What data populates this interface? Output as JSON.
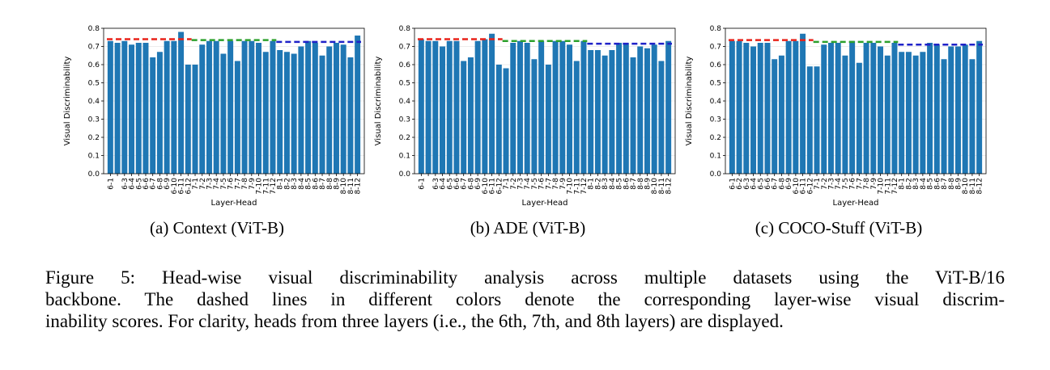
{
  "chart_data": [
    {
      "type": "bar",
      "ylabel": "Visual Discriminability",
      "xlabel": "Layer-Head",
      "ylim": [
        0,
        0.8
      ],
      "yticks": [
        "0.0",
        "0.1",
        "0.2",
        "0.3",
        "0.4",
        "0.5",
        "0.6",
        "0.7",
        "0.8"
      ],
      "grid": true,
      "categories": [
        "6-1",
        "6-2",
        "6-3",
        "6-4",
        "6-5",
        "6-6",
        "6-7",
        "6-8",
        "6-9",
        "6-10",
        "6-11",
        "6-12",
        "7-1",
        "7-2",
        "7-3",
        "7-4",
        "7-5",
        "7-6",
        "7-7",
        "7-8",
        "7-9",
        "7-10",
        "7-11",
        "7-12",
        "8-1",
        "8-2",
        "8-3",
        "8-4",
        "8-5",
        "8-6",
        "8-7",
        "8-8",
        "8-9",
        "8-10",
        "8-11",
        "8-12"
      ],
      "visible_tick_labels": [
        "6-1",
        "6-3",
        "6-4",
        "6-5",
        "6-6",
        "6-7",
        "6-8",
        "6-9",
        "6-10",
        "6-11",
        "6-12",
        "7-1",
        "7-2",
        "7-3",
        "7-4",
        "7-5",
        "7-6",
        "7-7",
        "7-8",
        "7-9",
        "7-10",
        "7-11",
        "7-12",
        "8-1",
        "8-2",
        "8-3",
        "8-4",
        "8-5",
        "8-6",
        "8-7",
        "8-8",
        "8-9",
        "8-10",
        "8-11",
        "8-12"
      ],
      "values": [
        0.73,
        0.72,
        0.73,
        0.71,
        0.72,
        0.72,
        0.64,
        0.67,
        0.73,
        0.73,
        0.78,
        0.6,
        0.6,
        0.71,
        0.73,
        0.73,
        0.66,
        0.73,
        0.62,
        0.73,
        0.73,
        0.72,
        0.67,
        0.73,
        0.68,
        0.67,
        0.66,
        0.7,
        0.73,
        0.72,
        0.65,
        0.7,
        0.72,
        0.71,
        0.64,
        0.76
      ],
      "layer_means": [
        {
          "start": 0,
          "end": 11,
          "value": 0.74,
          "color": "#e8231a"
        },
        {
          "start": 12,
          "end": 23,
          "value": 0.735,
          "color": "#2ca02c"
        },
        {
          "start": 24,
          "end": 35,
          "value": 0.725,
          "color": "#1f22c8"
        }
      ],
      "bar_color": "#1f77b4"
    },
    {
      "type": "bar",
      "ylabel": "Visual Discriminability",
      "xlabel": "Layer-Head",
      "ylim": [
        0,
        0.8
      ],
      "yticks": [
        "0.0",
        "0.1",
        "0.2",
        "0.3",
        "0.4",
        "0.5",
        "0.6",
        "0.7",
        "0.8"
      ],
      "grid": true,
      "categories": [
        "6-1",
        "6-2",
        "6-3",
        "6-4",
        "6-5",
        "6-6",
        "6-7",
        "6-8",
        "6-9",
        "6-10",
        "6-11",
        "6-12",
        "7-1",
        "7-2",
        "7-3",
        "7-4",
        "7-5",
        "7-6",
        "7-7",
        "7-8",
        "7-9",
        "7-10",
        "7-11",
        "7-12",
        "8-1",
        "8-2",
        "8-3",
        "8-4",
        "8-5",
        "8-6",
        "8-7",
        "8-8",
        "8-9",
        "8-10",
        "8-11",
        "8-12"
      ],
      "visible_tick_labels": [
        "6-1",
        "6-3",
        "6-4",
        "6-5",
        "6-6",
        "6-7",
        "6-8",
        "6-9",
        "6-10",
        "6-11",
        "6-12",
        "7-1",
        "7-2",
        "7-3",
        "7-4",
        "7-5",
        "7-6",
        "7-7",
        "7-8",
        "7-9",
        "7-10",
        "7-11",
        "7-12",
        "8-1",
        "8-2",
        "8-3",
        "8-4",
        "8-5",
        "8-6",
        "8-7",
        "8-8",
        "8-9",
        "8-10",
        "8-11",
        "8-12"
      ],
      "values": [
        0.74,
        0.73,
        0.73,
        0.7,
        0.73,
        0.73,
        0.62,
        0.64,
        0.73,
        0.74,
        0.77,
        0.6,
        0.58,
        0.72,
        0.73,
        0.72,
        0.63,
        0.73,
        0.6,
        0.73,
        0.73,
        0.71,
        0.62,
        0.73,
        0.68,
        0.68,
        0.65,
        0.68,
        0.72,
        0.72,
        0.64,
        0.7,
        0.69,
        0.71,
        0.62,
        0.73
      ],
      "layer_means": [
        {
          "start": 0,
          "end": 11,
          "value": 0.74,
          "color": "#e8231a"
        },
        {
          "start": 12,
          "end": 23,
          "value": 0.73,
          "color": "#2ca02c"
        },
        {
          "start": 24,
          "end": 35,
          "value": 0.715,
          "color": "#1f22c8"
        }
      ],
      "bar_color": "#1f77b4"
    },
    {
      "type": "bar",
      "ylabel": "Visual Discriminability",
      "xlabel": "Layer-Head",
      "ylim": [
        0,
        0.8
      ],
      "yticks": [
        "0.0",
        "0.1",
        "0.2",
        "0.3",
        "0.4",
        "0.5",
        "0.6",
        "0.7",
        "0.8"
      ],
      "grid": true,
      "categories": [
        "6-1",
        "6-2",
        "6-3",
        "6-4",
        "6-5",
        "6-6",
        "6-7",
        "6-8",
        "6-9",
        "6-10",
        "6-11",
        "6-12",
        "7-1",
        "7-2",
        "7-3",
        "7-4",
        "7-5",
        "7-6",
        "7-7",
        "7-8",
        "7-9",
        "7-10",
        "7-11",
        "7-12",
        "8-1",
        "8-2",
        "8-3",
        "8-4",
        "8-5",
        "8-6",
        "8-7",
        "8-8",
        "8-9",
        "8-10",
        "8-11",
        "8-12"
      ],
      "visible_tick_labels": [
        "6-1",
        "6-2",
        "6-3",
        "6-4",
        "6-5",
        "6-6",
        "6-7",
        "6-8",
        "6-9",
        "6-10",
        "6-11",
        "6-12",
        "7-1",
        "7-2",
        "7-3",
        "7-4",
        "7-5",
        "7-6",
        "7-7",
        "7-8",
        "7-9",
        "7-10",
        "7-11",
        "7-12",
        "8-1",
        "8-2",
        "8-3",
        "8-4",
        "8-5",
        "8-6",
        "8-7",
        "8-8",
        "8-9",
        "8-10",
        "8-11",
        "8-12"
      ],
      "values": [
        0.73,
        0.73,
        0.72,
        0.7,
        0.72,
        0.72,
        0.63,
        0.65,
        0.73,
        0.73,
        0.77,
        0.59,
        0.59,
        0.71,
        0.72,
        0.72,
        0.65,
        0.73,
        0.61,
        0.72,
        0.72,
        0.7,
        0.65,
        0.72,
        0.67,
        0.67,
        0.65,
        0.67,
        0.72,
        0.71,
        0.63,
        0.7,
        0.7,
        0.71,
        0.63,
        0.73
      ],
      "layer_means": [
        {
          "start": 0,
          "end": 11,
          "value": 0.735,
          "color": "#e8231a"
        },
        {
          "start": 12,
          "end": 23,
          "value": 0.725,
          "color": "#2ca02c"
        },
        {
          "start": 24,
          "end": 35,
          "value": 0.71,
          "color": "#1f22c8"
        }
      ],
      "bar_color": "#1f77b4"
    }
  ],
  "subcaptions": [
    "(a) Context (ViT-B)",
    "(b) ADE (ViT-B)",
    "(c) COCO-Stuff (ViT-B)"
  ],
  "figure_caption": {
    "line1": "Figure 5: Head-wise visual discriminability analysis across multiple datasets using the ViT-B/16",
    "line2": "backbone. The dashed lines in different colors denote the corresponding layer-wise visual discrim-",
    "line3": "inability scores. For clarity, heads from three layers (i.e., the 6th, 7th, and 8th layers) are displayed."
  }
}
